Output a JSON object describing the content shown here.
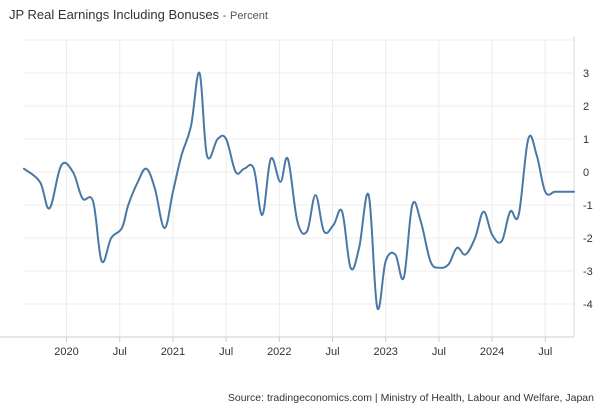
{
  "chart_data": {
    "type": "line",
    "title": "JP Real Earnings Including Bonuses",
    "subtitle": "Percent",
    "title_separator": "-",
    "source": "Source: tradingeconomics.com | Ministry of Health, Labour and Welfare, Japan",
    "xlabel": "",
    "ylabel": "",
    "ylim": [
      -5,
      4
    ],
    "yticks": [
      3,
      2,
      1,
      0,
      -1,
      -2,
      -3,
      -4
    ],
    "xlim": [
      2019.6,
      2024.77
    ],
    "xticks": [
      {
        "x": 2020.0,
        "label": "2020"
      },
      {
        "x": 2020.5,
        "label": "Jul"
      },
      {
        "x": 2021.0,
        "label": "2021"
      },
      {
        "x": 2021.5,
        "label": "Jul"
      },
      {
        "x": 2022.0,
        "label": "2022"
      },
      {
        "x": 2022.5,
        "label": "Jul"
      },
      {
        "x": 2023.0,
        "label": "2023"
      },
      {
        "x": 2023.5,
        "label": "Jul"
      },
      {
        "x": 2024.0,
        "label": "2024"
      },
      {
        "x": 2024.5,
        "label": "Jul"
      }
    ],
    "grid": true,
    "line_color": "#4a78a6",
    "series": [
      {
        "x": [
          2019.6,
          2019.75,
          2019.84,
          2019.95,
          2020.06,
          2020.15,
          2020.25,
          2020.33,
          2020.42,
          2020.52,
          2020.58,
          2020.67,
          2020.75,
          2020.83,
          2020.92,
          2021.0,
          2021.08,
          2021.17,
          2021.25,
          2021.32,
          2021.42,
          2021.5,
          2021.59,
          2021.67,
          2021.76,
          2021.84,
          2021.92,
          2022.01,
          2022.08,
          2022.17,
          2022.26,
          2022.34,
          2022.42,
          2022.51,
          2022.59,
          2022.67,
          2022.75,
          2022.84,
          2022.92,
          2023.0,
          2023.09,
          2023.17,
          2023.25,
          2023.33,
          2023.42,
          2023.5,
          2023.59,
          2023.67,
          2023.75,
          2023.84,
          2023.92,
          2024.0,
          2024.09,
          2024.17,
          2024.25,
          2024.34,
          2024.42,
          2024.5,
          2024.59,
          2024.67,
          2024.77
        ],
        "y": [
          0.1,
          -0.3,
          -1.1,
          0.2,
          0.0,
          -0.8,
          -0.9,
          -2.7,
          -2.0,
          -1.7,
          -1.0,
          -0.3,
          0.1,
          -0.5,
          -1.7,
          -0.6,
          0.5,
          1.4,
          3.0,
          0.5,
          1.0,
          1.0,
          0.0,
          0.1,
          0.1,
          -1.3,
          0.4,
          -0.3,
          0.4,
          -1.5,
          -1.8,
          -0.7,
          -1.8,
          -1.6,
          -1.2,
          -2.9,
          -2.3,
          -0.7,
          -4.1,
          -2.7,
          -2.5,
          -3.2,
          -1.0,
          -1.5,
          -2.7,
          -2.9,
          -2.8,
          -2.3,
          -2.5,
          -2.0,
          -1.2,
          -1.9,
          -2.1,
          -1.2,
          -1.3,
          1.0,
          0.5,
          -0.6,
          -0.6,
          -0.6,
          -0.6
        ]
      }
    ]
  }
}
